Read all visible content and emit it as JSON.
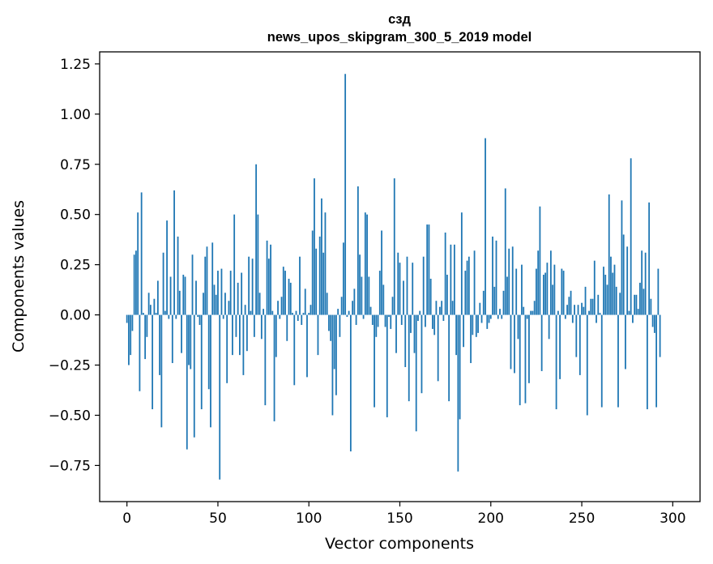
{
  "chart_data": {
    "type": "bar",
    "title": "сзд",
    "subtitle": "news_upos_skipgram_300_5_2019 model",
    "xlabel": "Vector components",
    "ylabel": "Components values",
    "xlim": [
      -15,
      315
    ],
    "ylim": [
      -0.93,
      1.31
    ],
    "xticks": [
      0,
      50,
      100,
      150,
      200,
      250,
      300
    ],
    "yticks": [
      -0.75,
      -0.5,
      -0.25,
      0.0,
      0.25,
      0.5,
      0.75,
      1.0,
      1.25
    ],
    "ytick_labels": [
      "−0.75",
      "−0.50",
      "−0.25",
      "0.00",
      "0.25",
      "0.50",
      "0.75",
      "1.00",
      "1.25"
    ],
    "bar_color": "#1f77b4",
    "grid": false,
    "values": [
      -0.04,
      -0.25,
      -0.2,
      -0.08,
      0.3,
      0.32,
      0.51,
      -0.38,
      0.61,
      0.01,
      -0.22,
      -0.11,
      0.11,
      0.05,
      -0.47,
      0.08,
      0.01,
      0.17,
      -0.3,
      -0.56,
      0.31,
      0.02,
      0.47,
      -0.02,
      0.19,
      -0.24,
      0.62,
      -0.02,
      0.39,
      0.12,
      -0.19,
      0.2,
      0.19,
      -0.67,
      -0.25,
      -0.27,
      0.3,
      -0.61,
      0.17,
      -0.01,
      -0.05,
      -0.47,
      0.11,
      0.29,
      0.34,
      -0.37,
      -0.56,
      0.36,
      0.15,
      0.1,
      0.22,
      -0.82,
      0.23,
      -0.02,
      0.11,
      -0.34,
      0.07,
      0.22,
      -0.2,
      0.5,
      -0.11,
      0.16,
      -0.2,
      0.21,
      -0.3,
      0.05,
      -0.18,
      0.29,
      0.02,
      0.28,
      -0.11,
      0.75,
      0.5,
      0.11,
      -0.12,
      0.03,
      -0.45,
      0.37,
      0.28,
      0.35,
      0.02,
      -0.53,
      -0.21,
      0.07,
      -0.02,
      0.09,
      0.24,
      0.22,
      -0.13,
      0.18,
      0.16,
      0.01,
      -0.35,
      0.02,
      -0.03,
      0.29,
      -0.05,
      0.01,
      0.13,
      -0.31,
      0.01,
      0.05,
      0.42,
      0.68,
      0.33,
      -0.2,
      0.39,
      0.58,
      0.31,
      0.51,
      0.11,
      -0.08,
      -0.13,
      -0.5,
      -0.27,
      -0.4,
      0.03,
      -0.11,
      0.09,
      0.36,
      1.2,
      -0.01,
      0.02,
      -0.68,
      0.07,
      0.13,
      -0.05,
      0.64,
      0.3,
      0.19,
      -0.02,
      0.51,
      0.5,
      0.19,
      0.04,
      -0.05,
      -0.46,
      -0.11,
      -0.06,
      0.22,
      0.42,
      0.15,
      -0.06,
      -0.51,
      -0.01,
      -0.07,
      0.09,
      0.68,
      -0.19,
      0.31,
      0.26,
      -0.05,
      0.17,
      -0.26,
      0.29,
      -0.43,
      -0.09,
      0.26,
      -0.19,
      -0.58,
      -0.03,
      0.02,
      -0.39,
      0.29,
      -0.06,
      0.45,
      0.45,
      0.18,
      -0.07,
      -0.1,
      0.07,
      -0.33,
      0.04,
      0.07,
      -0.03,
      0.41,
      0.2,
      -0.43,
      0.35,
      0.07,
      0.35,
      -0.2,
      -0.78,
      -0.52,
      0.51,
      -0.16,
      0.22,
      0.27,
      0.29,
      -0.24,
      -0.1,
      0.32,
      -0.11,
      -0.09,
      0.06,
      -0.04,
      0.12,
      0.88,
      -0.07,
      -0.04,
      -0.02,
      0.39,
      0.14,
      0.37,
      -0.02,
      0.03,
      -0.02,
      0.12,
      0.63,
      0.19,
      0.33,
      -0.27,
      0.34,
      -0.29,
      0.23,
      -0.12,
      -0.45,
      0.25,
      0.04,
      -0.44,
      -0.02,
      -0.34,
      0.02,
      0.02,
      0.07,
      0.23,
      0.32,
      0.54,
      -0.28,
      0.2,
      0.21,
      0.26,
      -0.12,
      0.32,
      0.15,
      0.25,
      -0.47,
      0.02,
      -0.32,
      0.23,
      0.22,
      -0.02,
      0.05,
      0.09,
      0.12,
      -0.04,
      0.05,
      -0.21,
      0.05,
      -0.3,
      0.06,
      0.04,
      0.14,
      -0.5,
      0.02,
      0.08,
      0.08,
      0.27,
      -0.04,
      0.1,
      0.01,
      -0.46,
      0.24,
      0.2,
      0.15,
      0.6,
      0.29,
      0.21,
      0.25,
      0.14,
      -0.46,
      0.11,
      0.57,
      0.4,
      -0.27,
      0.34,
      0.02,
      0.78,
      -0.04,
      0.1,
      0.1,
      0.03,
      0.16,
      0.32,
      0.13,
      0.31,
      -0.47,
      0.56,
      0.08,
      -0.06,
      -0.09,
      -0.46,
      0.23,
      -0.21
    ]
  }
}
